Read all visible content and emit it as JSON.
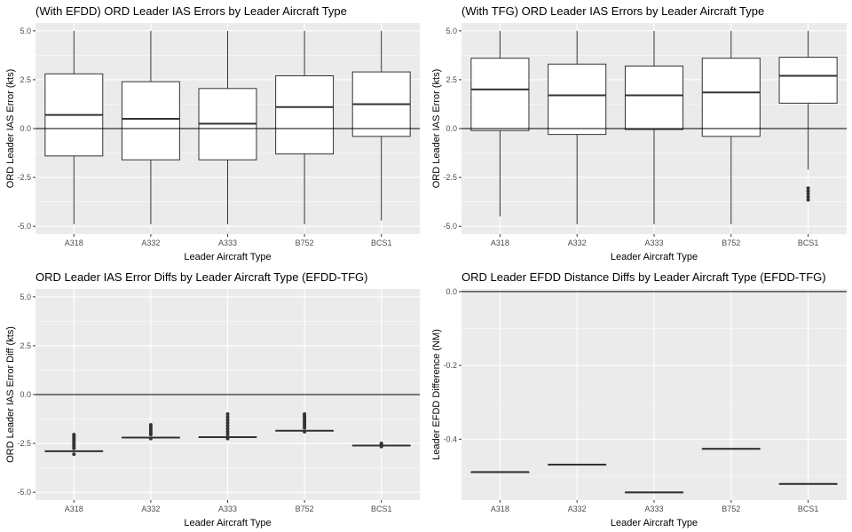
{
  "chart_data": [
    {
      "type": "box",
      "title": "(With EFDD) ORD Leader IAS Errors by Leader Aircraft Type",
      "xlabel": "Leader Aircraft Type",
      "ylabel": "ORD Leader IAS Error (kts)",
      "categories": [
        "A318",
        "A332",
        "A333",
        "B752",
        "BCS1"
      ],
      "ylim": [
        -5.4,
        5.4
      ],
      "yticks": [
        -5.0,
        -2.5,
        0.0,
        2.5,
        5.0
      ],
      "ytick_labels": [
        "-5.0",
        "-2.5",
        "0.0",
        "2.5",
        "5.0"
      ],
      "reference_line": 0,
      "boxes": [
        {
          "min": -4.9,
          "q1": -1.4,
          "median": 0.7,
          "q3": 2.8,
          "max": 5.0,
          "outliers": []
        },
        {
          "min": -4.9,
          "q1": -1.6,
          "median": 0.5,
          "q3": 2.4,
          "max": 5.0,
          "outliers": []
        },
        {
          "min": -4.9,
          "q1": -1.6,
          "median": 0.25,
          "q3": 2.05,
          "max": 5.0,
          "outliers": []
        },
        {
          "min": -4.9,
          "q1": -1.3,
          "median": 1.1,
          "q3": 2.7,
          "max": 5.0,
          "outliers": []
        },
        {
          "min": -4.7,
          "q1": -0.4,
          "median": 1.25,
          "q3": 2.9,
          "max": 5.0,
          "outliers": []
        }
      ],
      "grid": true
    },
    {
      "type": "box",
      "title": "(With TFG) ORD Leader IAS Errors by Leader Aircraft Type",
      "xlabel": "Leader Aircraft Type",
      "ylabel": "ORD Leader IAS Error (kts)",
      "categories": [
        "A318",
        "A332",
        "A333",
        "B752",
        "BCS1"
      ],
      "ylim": [
        -5.4,
        5.4
      ],
      "yticks": [
        -5.0,
        -2.5,
        0.0,
        2.5,
        5.0
      ],
      "ytick_labels": [
        "-5.0",
        "-2.5",
        "0.0",
        "2.5",
        "5.0"
      ],
      "reference_line": 0,
      "boxes": [
        {
          "min": -4.5,
          "q1": -0.1,
          "median": 2.0,
          "q3": 3.6,
          "max": 5.0,
          "outliers": []
        },
        {
          "min": -4.9,
          "q1": -0.3,
          "median": 1.7,
          "q3": 3.3,
          "max": 5.0,
          "outliers": []
        },
        {
          "min": -4.9,
          "q1": -0.05,
          "median": 1.7,
          "q3": 3.2,
          "max": 5.0,
          "outliers": []
        },
        {
          "min": -4.9,
          "q1": -0.4,
          "median": 1.85,
          "q3": 3.6,
          "max": 5.0,
          "outliers": []
        },
        {
          "min": -2.1,
          "q1": 1.3,
          "median": 2.7,
          "q3": 3.65,
          "max": 5.0,
          "outliers": [
            -3.05,
            -3.2,
            -3.35,
            -3.5,
            -3.65
          ]
        }
      ],
      "grid": true
    },
    {
      "type": "box",
      "title": "ORD Leader IAS Error Diffs by Leader Aircraft Type (EFDD-TFG)",
      "xlabel": "Leader Aircraft Type",
      "ylabel": "ORD Leader IAS Error Diff (kts)",
      "categories": [
        "A318",
        "A332",
        "A333",
        "B752",
        "BCS1"
      ],
      "ylim": [
        -5.4,
        5.4
      ],
      "yticks": [
        -5.0,
        -2.5,
        0.0,
        2.5,
        5.0
      ],
      "ytick_labels": [
        "-5.0",
        "-2.5",
        "0.0",
        "2.5",
        "5.0"
      ],
      "reference_line": 0,
      "boxes": [
        {
          "min": -2.93,
          "q1": -2.91,
          "median": -2.9,
          "q3": -2.89,
          "max": -2.87,
          "outliers": [
            -2.05,
            -2.15,
            -2.25,
            -2.35,
            -2.45,
            -2.55,
            -2.65,
            -2.75,
            -3.05
          ]
        },
        {
          "min": -2.23,
          "q1": -2.21,
          "median": -2.2,
          "q3": -2.19,
          "max": -2.17,
          "outliers": [
            -1.55,
            -1.65,
            -1.75,
            -1.85,
            -1.95,
            -2.05,
            -2.25
          ]
        },
        {
          "min": -2.21,
          "q1": -2.19,
          "median": -2.18,
          "q3": -2.17,
          "max": -2.15,
          "outliers": [
            -1.0,
            -1.15,
            -1.3,
            -1.45,
            -1.6,
            -1.75,
            -1.9,
            -2.05,
            -2.25
          ]
        },
        {
          "min": -1.88,
          "q1": -1.86,
          "median": -1.85,
          "q3": -1.84,
          "max": -1.82,
          "outliers": [
            -1.0,
            -1.1,
            -1.2,
            -1.3,
            -1.4,
            -1.5,
            -1.6,
            -1.7,
            -1.9
          ]
        },
        {
          "min": -2.64,
          "q1": -2.62,
          "median": -2.61,
          "q3": -2.6,
          "max": -2.58,
          "outliers": [
            -2.5,
            -2.55,
            -2.66
          ]
        }
      ],
      "grid": true
    },
    {
      "type": "box",
      "title": "ORD Leader EFDD Distance Diffs by Leader Aircraft Type (EFDD-TFG)",
      "xlabel": "Leader Aircraft Type",
      "ylabel": "Leader EFDD Difference (NM)",
      "categories": [
        "A318",
        "A332",
        "A333",
        "B752",
        "BCS1"
      ],
      "ylim": [
        -0.565,
        0.007
      ],
      "yticks": [
        -0.4,
        -0.2,
        0.0
      ],
      "ytick_labels": [
        "-0.4",
        "-0.2",
        "0.0"
      ],
      "reference_line": 0,
      "boxes": [
        {
          "min": -0.489,
          "q1": -0.489,
          "median": -0.489,
          "q3": -0.489,
          "max": -0.489,
          "outliers": []
        },
        {
          "min": -0.469,
          "q1": -0.469,
          "median": -0.469,
          "q3": -0.469,
          "max": -0.469,
          "outliers": []
        },
        {
          "min": -0.544,
          "q1": -0.544,
          "median": -0.544,
          "q3": -0.544,
          "max": -0.544,
          "outliers": []
        },
        {
          "min": -0.426,
          "q1": -0.426,
          "median": -0.426,
          "q3": -0.426,
          "max": -0.426,
          "outliers": []
        },
        {
          "min": -0.521,
          "q1": -0.521,
          "median": -0.521,
          "q3": -0.521,
          "max": -0.521,
          "outliers": []
        }
      ],
      "grid": true
    }
  ],
  "colors": {
    "panel_background": "#ebebeb",
    "grid_major": "#ffffff",
    "box_fill": "#ffffff",
    "box_stroke": "#333333",
    "reference_line": "#000000",
    "tick_text": "#4d4d4d"
  }
}
